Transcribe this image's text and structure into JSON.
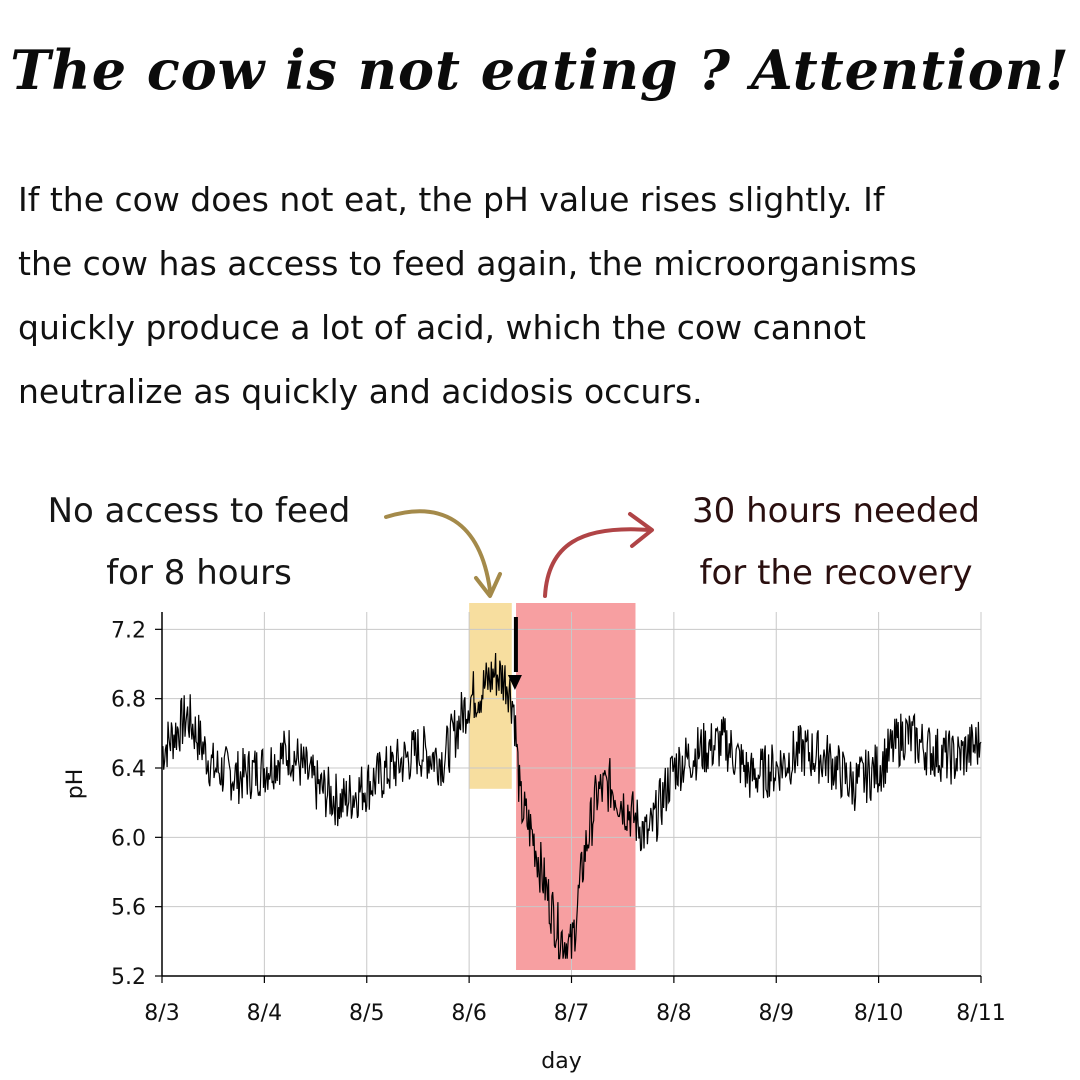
{
  "header": {
    "title": "The cow is not eating ? Attention!"
  },
  "body": {
    "lines": [
      "If the cow does not eat, the pH value rises slightly. If",
      "the cow has access to feed again, the microorganisms",
      "quickly produce a lot of acid, which the cow cannot",
      "neutralize as quickly and acidosis occurs."
    ]
  },
  "callouts": {
    "no_feed": {
      "lines": [
        "No access to feed",
        "for 8 hours"
      ]
    },
    "recovery": {
      "lines": [
        "30 hours needed",
        "for the recovery"
      ]
    }
  },
  "colors": {
    "no_feed_highlight": "#f7dc9a",
    "recovery_highlight": "#f79a9c",
    "no_feed_arrow": "#a48a4a",
    "recovery_arrow": "#b04446",
    "line": "#000000",
    "grid": "#c8c8c8"
  },
  "chart_data": {
    "type": "line",
    "title": "",
    "xlabel": "day",
    "ylabel": "pH",
    "x_tick_labels": [
      "8/3",
      "8/4",
      "8/5",
      "8/6",
      "8/7",
      "8/8",
      "8/9",
      "8/10",
      "8/11"
    ],
    "xlim": [
      "8/3",
      "8/11"
    ],
    "y_ticks": [
      5.2,
      5.6,
      6.0,
      6.4,
      6.8,
      7.2
    ],
    "y_tick_labels": [
      "5.2",
      "5.6",
      "6.0",
      "6.4",
      "6.8",
      "7.2"
    ],
    "ylim": [
      5.2,
      7.3
    ],
    "grid": true,
    "legend": "none",
    "annotations": [
      {
        "label": "No access to feed for 8 hours",
        "x_start": "8/6 00:00",
        "x_end": "8/6 10:00"
      },
      {
        "label": "30 hours needed for the recovery",
        "x_start": "8/6 11:00",
        "x_end": "8/7 15:00"
      }
    ],
    "feed_return_marker": {
      "x": "8/6 10:30"
    },
    "series": [
      {
        "x": [
          "8/3 00:00",
          "8/3 06:00",
          "8/3 12:00",
          "8/3 18:00",
          "8/4 00:00",
          "8/4 06:00",
          "8/4 12:00",
          "8/4 18:00",
          "8/5 00:00",
          "8/5 06:00",
          "8/5 12:00",
          "8/5 18:00",
          "8/6 00:00",
          "8/6 03:00",
          "8/6 06:00",
          "8/6 09:00",
          "8/6 10:30",
          "8/6 12:00",
          "8/6 15:00",
          "8/6 18:00",
          "8/6 21:00",
          "8/7 00:00",
          "8/7 03:00",
          "8/7 06:00",
          "8/7 09:00",
          "8/7 12:00",
          "8/7 15:00",
          "8/7 18:00",
          "8/8 00:00",
          "8/8 06:00",
          "8/8 12:00",
          "8/8 18:00",
          "8/9 00:00",
          "8/9 06:00",
          "8/9 12:00",
          "8/9 18:00",
          "8/10 00:00",
          "8/10 06:00",
          "8/10 12:00",
          "8/10 18:00",
          "8/11 00:00"
        ],
        "values": [
          6.5,
          6.7,
          6.4,
          6.35,
          6.4,
          6.5,
          6.3,
          6.2,
          6.3,
          6.4,
          6.5,
          6.45,
          6.8,
          6.85,
          6.95,
          6.9,
          6.75,
          6.2,
          6.0,
          5.7,
          5.45,
          5.35,
          5.9,
          6.25,
          6.3,
          6.2,
          6.1,
          6.0,
          6.4,
          6.5,
          6.55,
          6.35,
          6.4,
          6.5,
          6.45,
          6.3,
          6.4,
          6.6,
          6.5,
          6.45,
          6.55
        ]
      }
    ]
  }
}
